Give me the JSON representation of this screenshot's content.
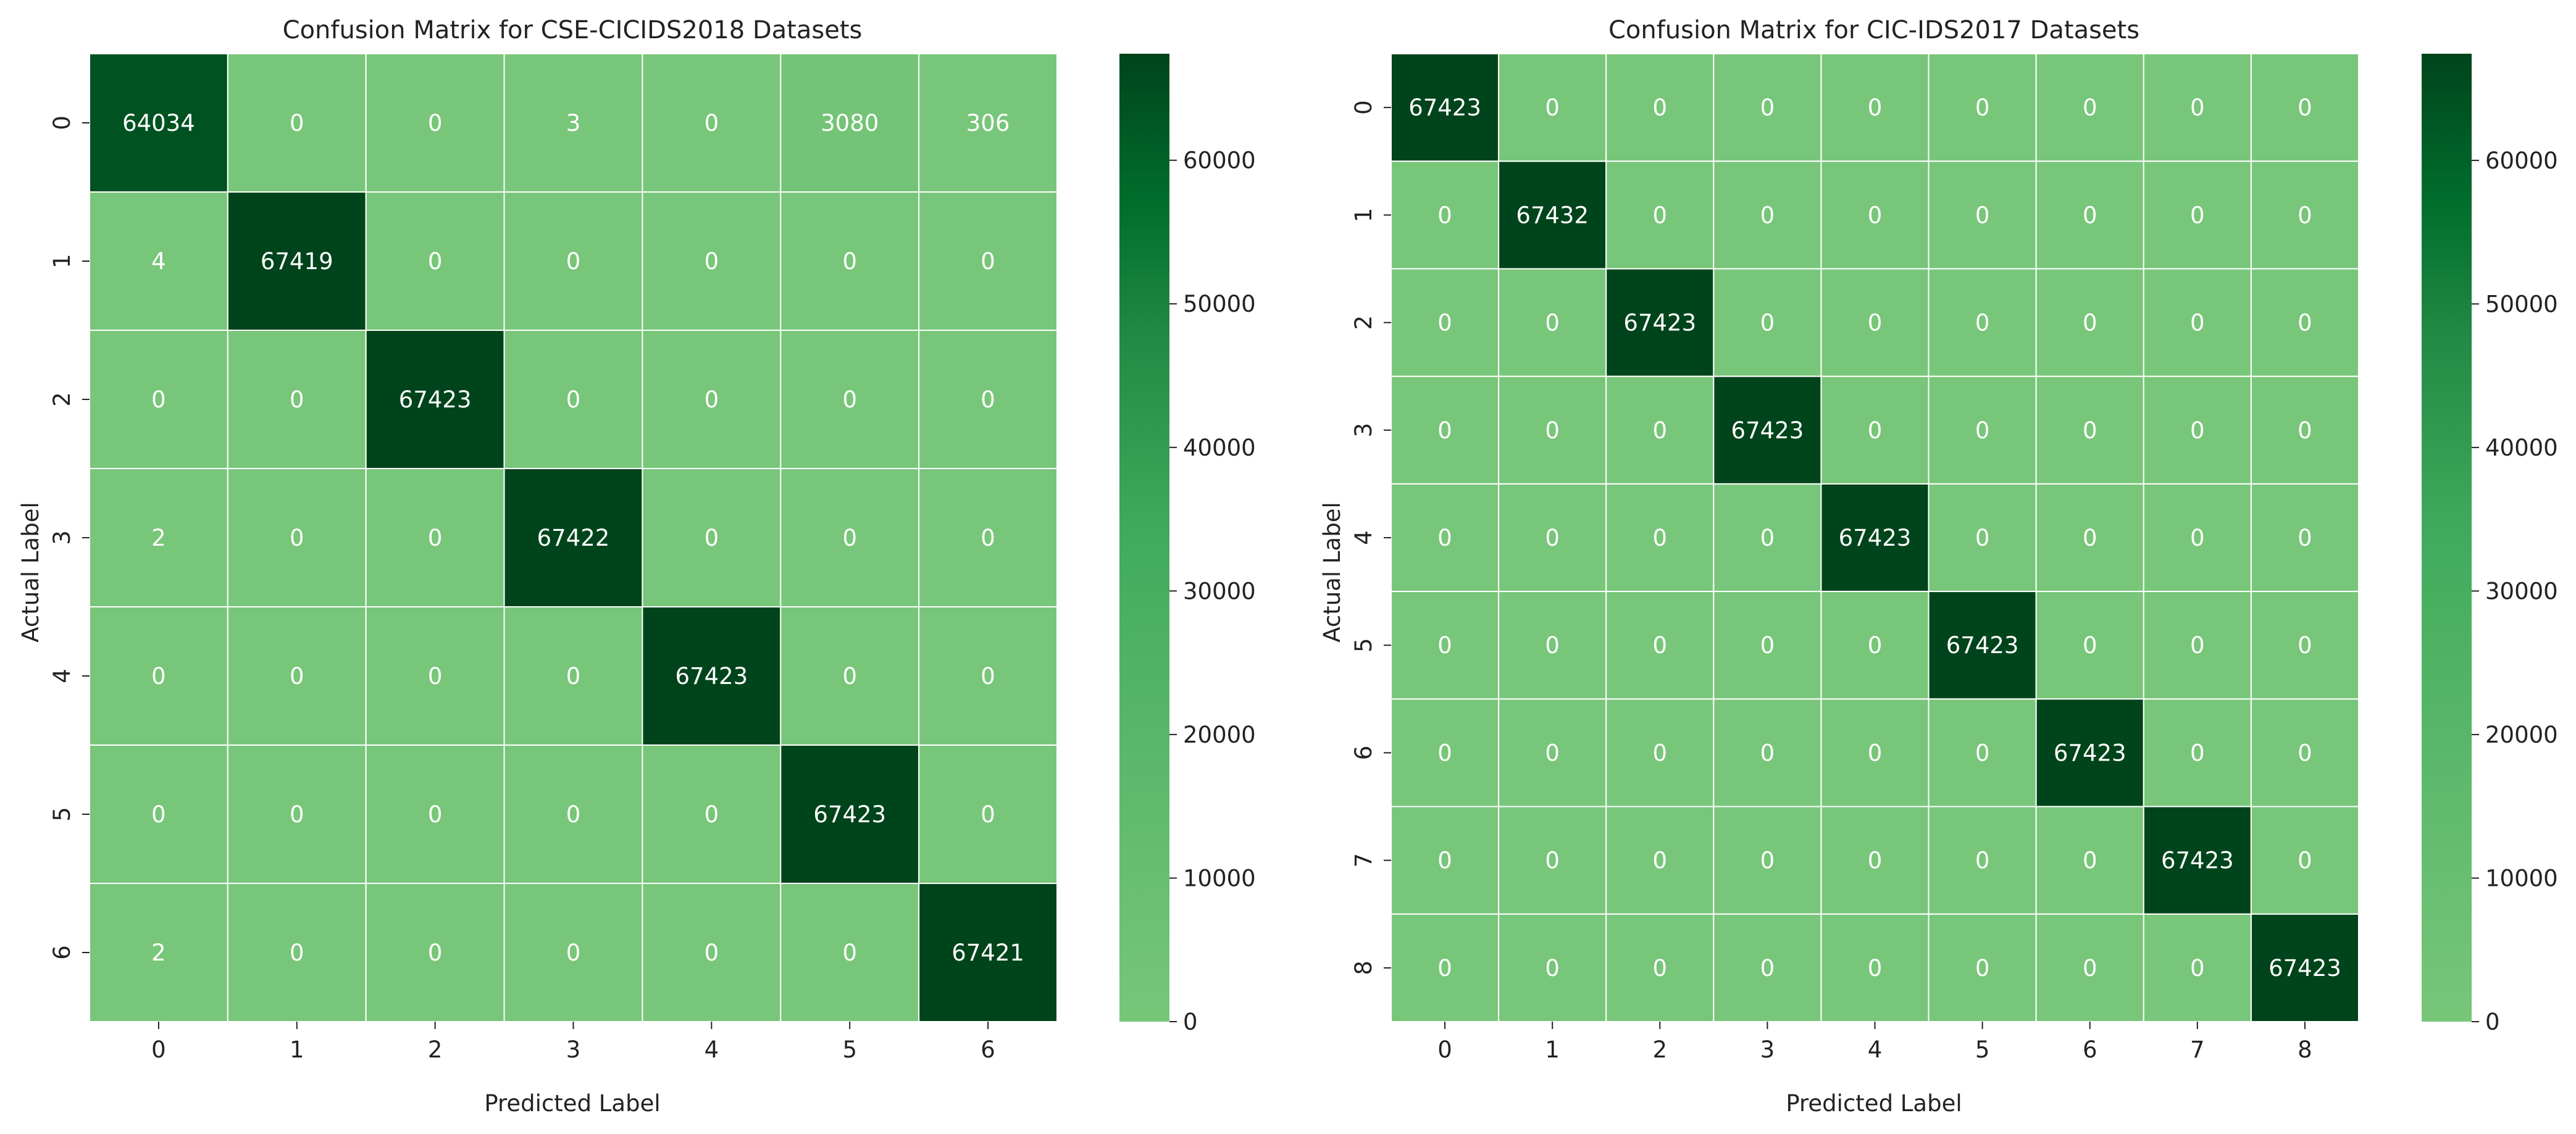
{
  "chart_data": [
    {
      "type": "heatmap",
      "title": "Confusion Matrix for CSE-CICIDS2018 Datasets",
      "xlabel": "Predicted Label",
      "ylabel": "Actual Label",
      "x_categories": [
        "0",
        "1",
        "2",
        "3",
        "4",
        "5",
        "6"
      ],
      "y_categories": [
        "0",
        "1",
        "2",
        "3",
        "4",
        "5",
        "6"
      ],
      "matrix": [
        [
          64034,
          0,
          0,
          3,
          0,
          3080,
          306
        ],
        [
          4,
          67419,
          0,
          0,
          0,
          0,
          0
        ],
        [
          0,
          0,
          67423,
          0,
          0,
          0,
          0
        ],
        [
          2,
          0,
          0,
          67422,
          0,
          0,
          0
        ],
        [
          0,
          0,
          0,
          0,
          67423,
          0,
          0
        ],
        [
          0,
          0,
          0,
          0,
          0,
          67423,
          0
        ],
        [
          2,
          0,
          0,
          0,
          0,
          0,
          67421
        ]
      ],
      "colorbar": {
        "range": [
          0,
          67423
        ],
        "ticks": [
          0,
          10000,
          20000,
          30000,
          40000,
          50000,
          60000
        ],
        "tick_labels": [
          "0",
          "10000",
          "20000",
          "30000",
          "40000",
          "50000",
          "60000"
        ]
      },
      "colormap": "Greens"
    },
    {
      "type": "heatmap",
      "title": "Confusion Matrix for CIC-IDS2017 Datasets",
      "xlabel": "Predicted Label",
      "ylabel": "Actual Label",
      "x_categories": [
        "0",
        "1",
        "2",
        "3",
        "4",
        "5",
        "6",
        "7",
        "8"
      ],
      "y_categories": [
        "0",
        "1",
        "2",
        "3",
        "4",
        "5",
        "6",
        "7",
        "8"
      ],
      "matrix": [
        [
          67423,
          0,
          0,
          0,
          0,
          0,
          0,
          0,
          0
        ],
        [
          0,
          67432,
          0,
          0,
          0,
          0,
          0,
          0,
          0
        ],
        [
          0,
          0,
          67423,
          0,
          0,
          0,
          0,
          0,
          0
        ],
        [
          0,
          0,
          0,
          67423,
          0,
          0,
          0,
          0,
          0
        ],
        [
          0,
          0,
          0,
          0,
          67423,
          0,
          0,
          0,
          0
        ],
        [
          0,
          0,
          0,
          0,
          0,
          67423,
          0,
          0,
          0
        ],
        [
          0,
          0,
          0,
          0,
          0,
          0,
          67423,
          0,
          0
        ],
        [
          0,
          0,
          0,
          0,
          0,
          0,
          0,
          67423,
          0
        ],
        [
          0,
          0,
          0,
          0,
          0,
          0,
          0,
          0,
          67423
        ]
      ],
      "colorbar": {
        "range": [
          0,
          67432
        ],
        "ticks": [
          0,
          10000,
          20000,
          30000,
          40000,
          50000,
          60000
        ],
        "tick_labels": [
          "0",
          "10000",
          "20000",
          "30000",
          "40000",
          "50000",
          "60000"
        ]
      },
      "colormap": "Greens"
    }
  ],
  "colors": {
    "low": "#78c679",
    "mid": "#41ab5d",
    "midhigh": "#238b45",
    "high": "#006d2c",
    "max": "#00441b",
    "grid": "#ffffff",
    "text_light": "#ffffff",
    "text_dark": "#262626"
  }
}
